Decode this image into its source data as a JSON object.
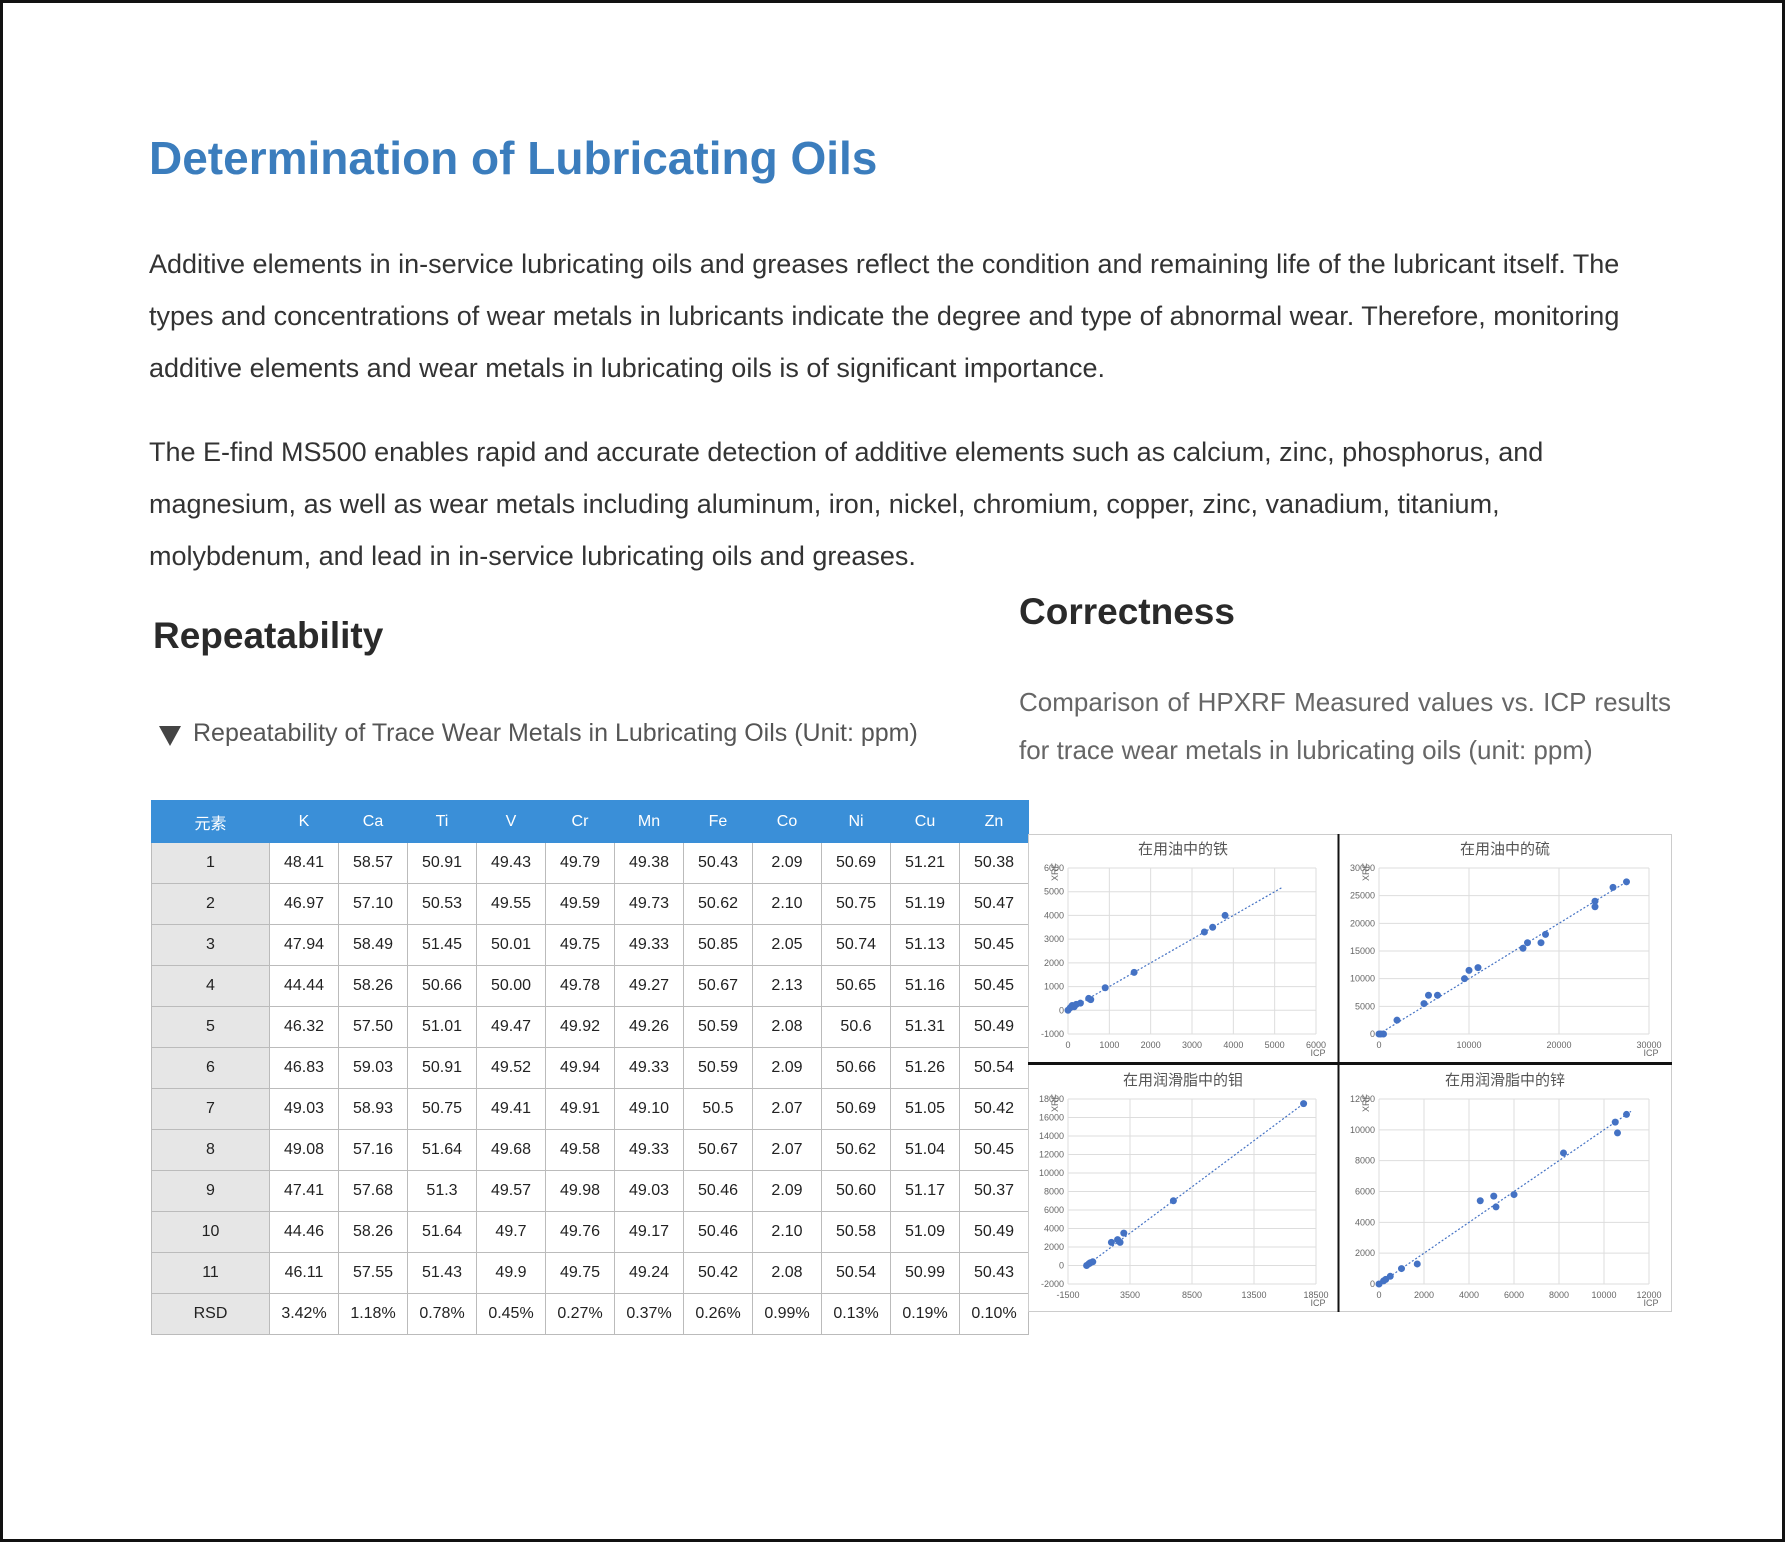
{
  "header": {
    "title": "Determination of Lubricating Oils"
  },
  "intro": {
    "paragraphs": [
      "Additive elements in in-service lubricating oils and greases reflect the condition and remaining life of the lubricant itself. The types and concentrations of wear metals in lubricants indicate the degree and type of abnormal wear. Therefore, monitoring additive elements and wear metals in lubricating oils is of significant importance.",
      "The E-find MS500 enables rapid and accurate detection of additive elements such as calcium, zinc, phosphorus, and magnesium, as well as wear metals including aluminum, iron, nickel, chromium, copper, zinc, vanadium, titanium, molybdenum, and lead in in-service lubricating oils and greases."
    ]
  },
  "repeatability": {
    "heading": "Repeatability",
    "caption": "Repeatability of Trace Wear Metals in Lubricating Oils (Unit: ppm)",
    "table": {
      "columns": [
        "元素",
        "K",
        "Ca",
        "Ti",
        "V",
        "Cr",
        "Mn",
        "Fe",
        "Co",
        "Ni",
        "Cu",
        "Zn"
      ],
      "rows": [
        [
          "1",
          "48.41",
          "58.57",
          "50.91",
          "49.43",
          "49.79",
          "49.38",
          "50.43",
          "2.09",
          "50.69",
          "51.21",
          "50.38"
        ],
        [
          "2",
          "46.97",
          "57.10",
          "50.53",
          "49.55",
          "49.59",
          "49.73",
          "50.62",
          "2.10",
          "50.75",
          "51.19",
          "50.47"
        ],
        [
          "3",
          "47.94",
          "58.49",
          "51.45",
          "50.01",
          "49.75",
          "49.33",
          "50.85",
          "2.05",
          "50.74",
          "51.13",
          "50.45"
        ],
        [
          "4",
          "44.44",
          "58.26",
          "50.66",
          "50.00",
          "49.78",
          "49.27",
          "50.67",
          "2.13",
          "50.65",
          "51.16",
          "50.45"
        ],
        [
          "5",
          "46.32",
          "57.50",
          "51.01",
          "49.47",
          "49.92",
          "49.26",
          "50.59",
          "2.08",
          "50.6",
          "51.31",
          "50.49"
        ],
        [
          "6",
          "46.83",
          "59.03",
          "50.91",
          "49.52",
          "49.94",
          "49.33",
          "50.59",
          "2.09",
          "50.66",
          "51.26",
          "50.54"
        ],
        [
          "7",
          "49.03",
          "58.93",
          "50.75",
          "49.41",
          "49.91",
          "49.10",
          "50.5",
          "2.07",
          "50.69",
          "51.05",
          "50.42"
        ],
        [
          "8",
          "49.08",
          "57.16",
          "51.64",
          "49.68",
          "49.58",
          "49.33",
          "50.67",
          "2.07",
          "50.62",
          "51.04",
          "50.45"
        ],
        [
          "9",
          "47.41",
          "57.68",
          "51.3",
          "49.57",
          "49.98",
          "49.03",
          "50.46",
          "2.09",
          "50.60",
          "51.17",
          "50.37"
        ],
        [
          "10",
          "44.46",
          "58.26",
          "51.64",
          "49.7",
          "49.76",
          "49.17",
          "50.46",
          "2.10",
          "50.58",
          "51.09",
          "50.49"
        ],
        [
          "11",
          "46.11",
          "57.55",
          "51.43",
          "49.9",
          "49.75",
          "49.24",
          "50.42",
          "2.08",
          "50.54",
          "50.99",
          "50.43"
        ],
        [
          "RSD",
          "3.42%",
          "1.18%",
          "0.78%",
          "0.45%",
          "0.27%",
          "0.37%",
          "0.26%",
          "0.99%",
          "0.13%",
          "0.19%",
          "0.10%"
        ]
      ]
    }
  },
  "correctness": {
    "heading": "Correctness",
    "caption": "Comparison of HPXRF Measured values vs. ICP results for trace wear metals in lubricating oils (unit: ppm)",
    "charts": [
      {
        "type": "scatter",
        "title": "在用油中的铁",
        "x_label": "ICP",
        "y_label": "XRF",
        "color": "#4472c4",
        "x": [
          0,
          50,
          100,
          150,
          200,
          300,
          500,
          550,
          900,
          1600,
          3300,
          3500,
          3800
        ],
        "y": [
          0,
          100,
          200,
          150,
          250,
          300,
          500,
          450,
          950,
          1600,
          3300,
          3500,
          4000
        ],
        "fit": {
          "x": [
            0,
            5200
          ],
          "y": [
            0,
            5200
          ]
        },
        "xlim": [
          0,
          6000
        ],
        "ylim": [
          -1000,
          6000
        ],
        "xticks": [
          0,
          1000,
          2000,
          3000,
          4000,
          5000,
          6000
        ],
        "yticks": [
          -1000,
          0,
          1000,
          2000,
          3000,
          4000,
          5000,
          6000
        ]
      },
      {
        "type": "scatter",
        "title": "在用油中的硫",
        "x_label": "ICP",
        "y_label": "XRF",
        "color": "#4472c4",
        "x": [
          0,
          200,
          500,
          2000,
          5000,
          5500,
          6500,
          9500,
          10000,
          11000,
          16000,
          16500,
          18000,
          18500,
          24000,
          24000,
          26000,
          27500
        ],
        "y": [
          0,
          0,
          0,
          2500,
          5500,
          7000,
          7000,
          10000,
          11500,
          12000,
          15500,
          16500,
          16500,
          18000,
          23000,
          24000,
          26500,
          27500
        ],
        "fit": {
          "x": [
            0,
            27500
          ],
          "y": [
            0,
            27500
          ]
        },
        "xlim": [
          0,
          30000
        ],
        "ylim": [
          0,
          30000
        ],
        "xticks": [
          0,
          10000,
          20000,
          30000
        ],
        "yticks": [
          0,
          5000,
          10000,
          15000,
          20000,
          25000,
          30000
        ]
      },
      {
        "type": "scatter",
        "title": "在用润滑脂中的钼",
        "x_label": "ICP",
        "y_label": "XRF",
        "color": "#4472c4",
        "x": [
          0,
          200,
          300,
          500,
          2000,
          2500,
          2700,
          3000,
          7000,
          17500
        ],
        "y": [
          0,
          200,
          300,
          400,
          2500,
          2800,
          2500,
          3500,
          7000,
          17500
        ],
        "fit": {
          "x": [
            0,
            17500
          ],
          "y": [
            0,
            17500
          ]
        },
        "xlim": [
          -1500,
          18500
        ],
        "ylim": [
          -2000,
          18000
        ],
        "xticks": [
          -1500,
          3500,
          8500,
          13500,
          18500
        ],
        "yticks": [
          -2000,
          0,
          2000,
          4000,
          6000,
          8000,
          10000,
          12000,
          14000,
          16000,
          18000
        ]
      },
      {
        "type": "scatter",
        "title": "在用润滑脂中的锌",
        "x_label": "ICP",
        "y_label": "XRF",
        "color": "#4472c4",
        "x": [
          0,
          200,
          300,
          500,
          1000,
          1700,
          4500,
          5100,
          5200,
          6000,
          8200,
          10500,
          10600,
          11000
        ],
        "y": [
          0,
          200,
          300,
          500,
          1000,
          1300,
          5400,
          5700,
          5000,
          5800,
          8500,
          10500,
          9800,
          11000
        ],
        "fit": {
          "x": [
            0,
            11200
          ],
          "y": [
            0,
            11200
          ]
        },
        "xlim": [
          0,
          12000
        ],
        "ylim": [
          0,
          12000
        ],
        "xticks": [
          0,
          2000,
          4000,
          6000,
          8000,
          10000,
          12000
        ],
        "yticks": [
          0,
          2000,
          4000,
          6000,
          8000,
          10000,
          12000
        ]
      }
    ]
  }
}
